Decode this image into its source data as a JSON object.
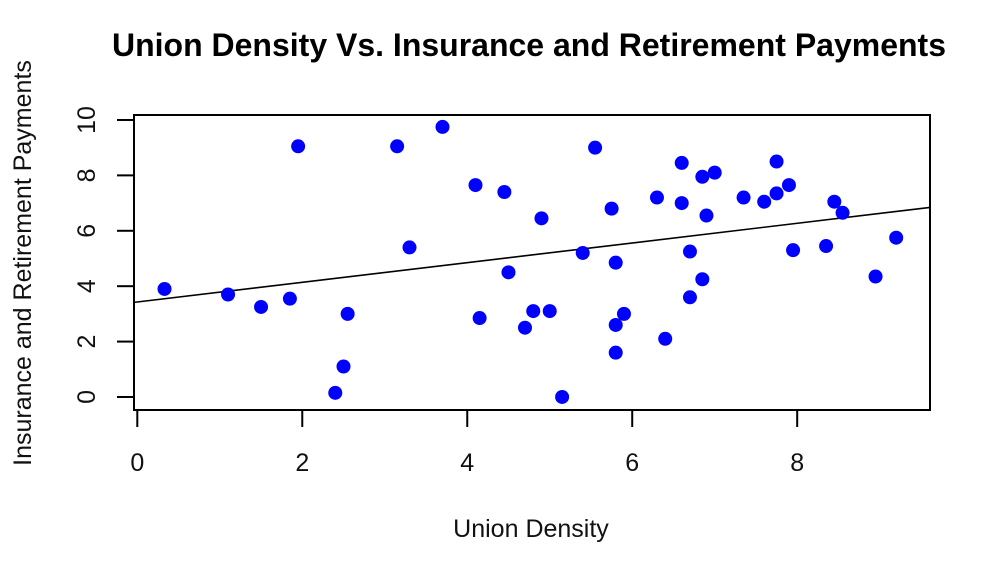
{
  "figure": {
    "background": "#ffffff",
    "text_color": "#000000"
  },
  "chart_data": {
    "type": "scatter",
    "title": "Union Density Vs. Insurance and Retirement Payments",
    "xlabel": "Union Density",
    "ylabel": "Insurance and Retirement Payments",
    "xlim": [
      -0.04,
      9.61
    ],
    "ylim": [
      -0.47,
      10.18
    ],
    "x_ticks": [
      0,
      2,
      4,
      6,
      8
    ],
    "y_ticks": [
      0,
      2,
      4,
      6,
      8,
      10
    ],
    "grid": false,
    "legend": "none",
    "point_color": "#0000FF",
    "point_radius": 7,
    "axis_color": "#000000",
    "points": [
      [
        0.33,
        3.9
      ],
      [
        1.1,
        3.7
      ],
      [
        1.5,
        3.25
      ],
      [
        1.85,
        3.55
      ],
      [
        1.95,
        9.05
      ],
      [
        2.4,
        0.15
      ],
      [
        2.5,
        1.1
      ],
      [
        2.55,
        3.0
      ],
      [
        3.15,
        9.05
      ],
      [
        3.3,
        5.4
      ],
      [
        3.7,
        9.75
      ],
      [
        4.1,
        7.65
      ],
      [
        4.15,
        2.85
      ],
      [
        4.45,
        7.4
      ],
      [
        4.5,
        4.5
      ],
      [
        4.7,
        2.5
      ],
      [
        4.8,
        3.1
      ],
      [
        4.9,
        6.45
      ],
      [
        5.0,
        3.1
      ],
      [
        5.15,
        0.0
      ],
      [
        5.4,
        5.2
      ],
      [
        5.55,
        9.0
      ],
      [
        5.75,
        6.8
      ],
      [
        5.8,
        4.85
      ],
      [
        5.8,
        2.6
      ],
      [
        5.8,
        1.6
      ],
      [
        5.9,
        3.0
      ],
      [
        6.3,
        7.2
      ],
      [
        6.4,
        2.1
      ],
      [
        6.6,
        8.45
      ],
      [
        6.6,
        7.0
      ],
      [
        6.7,
        5.25
      ],
      [
        6.7,
        3.6
      ],
      [
        6.85,
        7.95
      ],
      [
        6.85,
        4.25
      ],
      [
        6.9,
        6.55
      ],
      [
        7.0,
        8.1
      ],
      [
        7.35,
        7.2
      ],
      [
        7.6,
        7.05
      ],
      [
        7.75,
        7.35
      ],
      [
        7.75,
        8.5
      ],
      [
        7.9,
        7.65
      ],
      [
        7.95,
        5.3
      ],
      [
        8.35,
        5.45
      ],
      [
        8.45,
        7.05
      ],
      [
        8.55,
        6.65
      ],
      [
        8.95,
        4.35
      ],
      [
        9.2,
        5.75
      ]
    ],
    "trend_line": {
      "type": "linear",
      "intercept": 3.43,
      "slope": 0.355,
      "color": "#000000"
    }
  }
}
